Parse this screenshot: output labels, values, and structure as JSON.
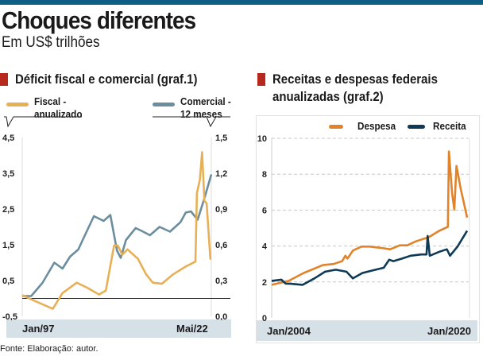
{
  "title": "Choques diferentes",
  "subtitle": "Em US$ trilhões",
  "source": "Fonte: Elaboração: autor.",
  "colors": {
    "topbar": "#0d5f86",
    "marker": "#b8291d",
    "fiscal": "#e8b055",
    "comercial": "#6b8e9e",
    "despesa": "#e0832a",
    "receita": "#0f3a55",
    "band": "#d6e0e7"
  },
  "chart_data": [
    {
      "type": "line",
      "title": "Déficit fiscal e comercial (graf.1)",
      "x_tick_labels": [
        "Jan/97",
        "Mai/22"
      ],
      "xlim": [
        1997.0,
        2022.33
      ],
      "y_left": {
        "ylim": [
          -0.5,
          4.5
        ],
        "ticks": [
          "4,5",
          "3,5",
          "2,5",
          "1,5",
          "0,5",
          "-0,5"
        ],
        "tick_values": [
          4.5,
          3.5,
          2.5,
          1.5,
          0.5,
          -0.5
        ]
      },
      "y_right": {
        "ylim": [
          0.0,
          1.5
        ],
        "ticks": [
          "1,5",
          "1,2",
          "0,9",
          "0,6",
          "0,3",
          "0,0"
        ],
        "tick_values": [
          1.5,
          1.2,
          0.9,
          0.6,
          0.3,
          0.0
        ]
      },
      "zero_line": 0,
      "grid": false,
      "legend_placement": "top",
      "series": [
        {
          "name": "Fiscal - anualizado",
          "name_lines": [
            "Fiscal -",
            "anualizado"
          ],
          "axis": "left",
          "x": [
            1997.0,
            1999.0,
            2001.1,
            2002.4,
            2004.3,
            2005.7,
            2007.3,
            2008.2,
            2009.3,
            2009.8,
            2010.4,
            2011.1,
            2012.5,
            2013.6,
            2014.5,
            2015.7,
            2017.2,
            2018.9,
            2020.2,
            2020.4,
            2020.8,
            2021.1,
            2021.4,
            2021.7,
            2022.2,
            2022.33
          ],
          "y": [
            0.09,
            -0.1,
            -0.29,
            0.15,
            0.44,
            0.3,
            0.11,
            0.22,
            1.48,
            1.48,
            1.22,
            1.37,
            1.11,
            0.67,
            0.44,
            0.41,
            0.67,
            0.89,
            1.03,
            2.95,
            3.32,
            4.09,
            2.73,
            2.66,
            1.11,
            1.11
          ]
        },
        {
          "name": "Comercial - 12 meses",
          "name_lines": [
            "Comercial -",
            "12 meses"
          ],
          "axis": "right",
          "x": [
            1997.0,
            1998.2,
            1999.7,
            2001.3,
            2002.4,
            2003.4,
            2004.5,
            2005.4,
            2006.6,
            2007.9,
            2008.8,
            2009.7,
            2010.2,
            2010.9,
            2012.2,
            2013.2,
            2014.1,
            2015.4,
            2016.8,
            2018.2,
            2018.9,
            2019.6,
            2020.5,
            2021.4,
            2022.33
          ],
          "y": [
            0.17,
            0.17,
            0.28,
            0.45,
            0.4,
            0.5,
            0.56,
            0.68,
            0.84,
            0.8,
            0.85,
            0.55,
            0.49,
            0.64,
            0.74,
            0.71,
            0.68,
            0.75,
            0.71,
            0.79,
            0.87,
            0.88,
            0.81,
            0.99,
            1.19
          ]
        }
      ]
    },
    {
      "type": "line",
      "title": "Receitas e despesas federais anualizadas (graf.2)",
      "title_lines": [
        "Receitas e despesas federais",
        "anualizadas (graf.2)"
      ],
      "x_tick_labels": [
        "Jan/2004",
        "Jan/2020"
      ],
      "xlim": [
        2004.0,
        2022.3
      ],
      "ylim": [
        0,
        10
      ],
      "y_ticks": [
        "10",
        "8",
        "6",
        "4",
        "2",
        "0"
      ],
      "y_tick_values": [
        10,
        8,
        6,
        4,
        2,
        0
      ],
      "grid": true,
      "legend_placement": "top-right",
      "series": [
        {
          "name": "Despesa",
          "x": [
            2004.0,
            2005.6,
            2007.0,
            2008.8,
            2009.8,
            2010.6,
            2010.9,
            2011.1,
            2011.6,
            2012.4,
            2013.2,
            2014.2,
            2015.1,
            2016.0,
            2016.7,
            2017.5,
            2018.7,
            2019.7,
            2020.5,
            2020.6,
            2020.9,
            2021.1,
            2021.3,
            2021.7,
            2022.3
          ],
          "y": [
            1.84,
            2.06,
            2.5,
            2.94,
            3.0,
            3.16,
            3.46,
            3.3,
            3.75,
            3.97,
            3.97,
            3.9,
            3.82,
            4.04,
            4.04,
            4.26,
            4.49,
            4.85,
            5.07,
            9.26,
            6.9,
            6.03,
            8.46,
            7.2,
            5.59
          ]
        },
        {
          "name": "Receita",
          "x": [
            2004.0,
            2004.9,
            2005.3,
            2005.8,
            2006.9,
            2008.0,
            2009.0,
            2010.0,
            2011.0,
            2011.6,
            2012.5,
            2013.5,
            2014.5,
            2015.0,
            2015.4,
            2016.2,
            2017.0,
            2018.0,
            2018.5,
            2018.6,
            2018.8,
            2019.7,
            2020.4,
            2020.7,
            2021.4,
            2022.3
          ],
          "y": [
            2.06,
            2.13,
            1.91,
            1.9,
            1.84,
            2.2,
            2.57,
            2.68,
            2.57,
            2.2,
            2.5,
            2.65,
            2.79,
            3.24,
            3.16,
            3.3,
            3.46,
            3.53,
            3.53,
            4.56,
            3.46,
            3.68,
            3.82,
            3.46,
            3.97,
            4.85
          ]
        }
      ]
    }
  ]
}
